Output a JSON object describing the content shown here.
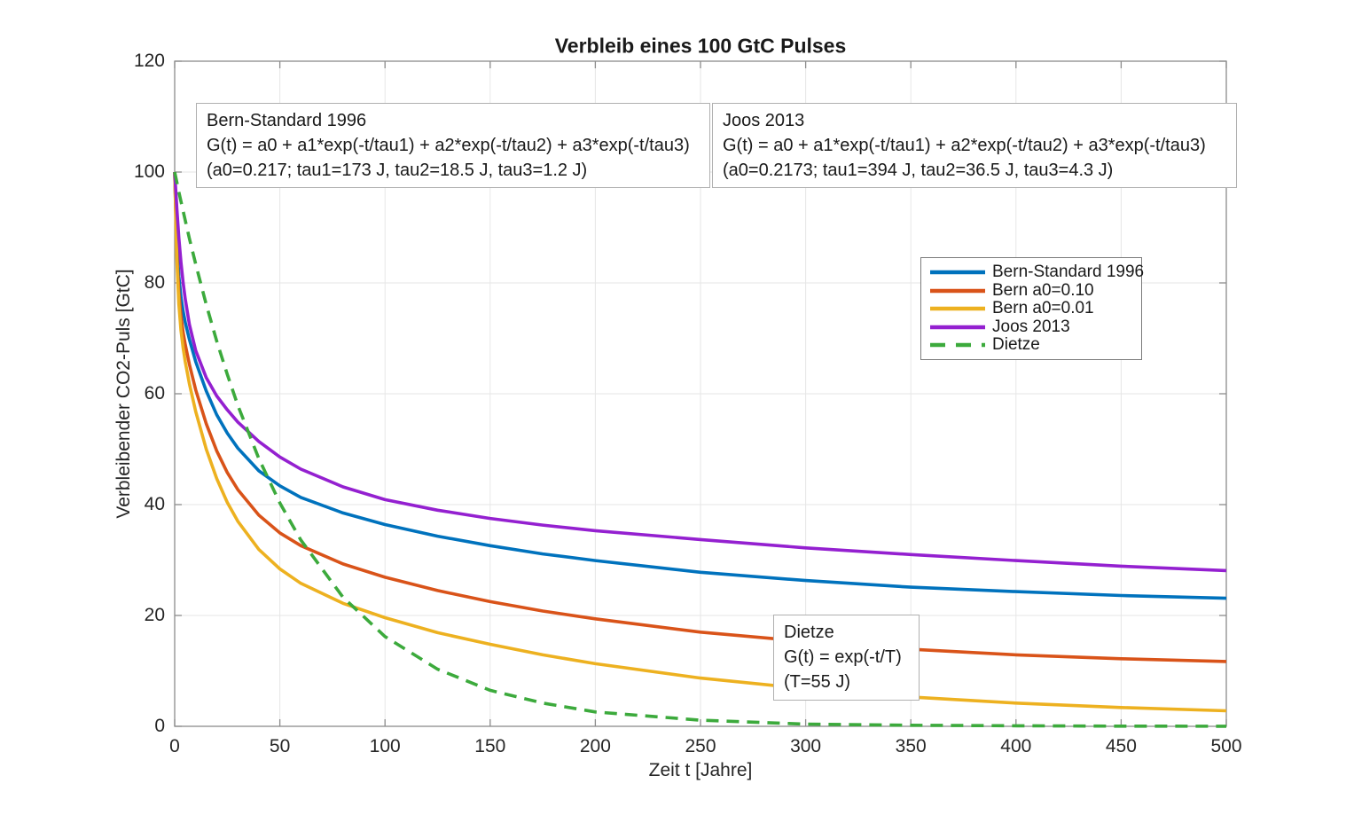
{
  "chart_data": {
    "type": "line",
    "title": "Verbleib eines 100 GtC Pulses",
    "xlabel": "Zeit t [Jahre]",
    "ylabel": "Verbleibender CO2-Puls [GtC]",
    "xlim": [
      0,
      500
    ],
    "ylim": [
      0,
      120
    ],
    "x_ticks": [
      0,
      50,
      100,
      150,
      200,
      250,
      300,
      350,
      400,
      450,
      500
    ],
    "y_ticks": [
      0,
      20,
      40,
      60,
      80,
      100,
      120
    ],
    "grid": true,
    "legend_position": "upper right",
    "x": [
      0,
      1,
      2,
      3,
      4,
      5,
      7,
      10,
      15,
      20,
      25,
      30,
      40,
      50,
      60,
      80,
      100,
      125,
      150,
      175,
      200,
      250,
      300,
      350,
      400,
      450,
      500
    ],
    "series": [
      {
        "name": "Bern-Standard 1996",
        "color": "#0072BD",
        "style": "solid",
        "values": [
          100,
          87.6,
          81.2,
          77.4,
          74.9,
          72.9,
          69.8,
          65.8,
          60.5,
          56.2,
          52.9,
          50.2,
          46.1,
          43.4,
          41.3,
          38.5,
          36.4,
          34.3,
          32.6,
          31.1,
          29.9,
          27.8,
          26.3,
          25.1,
          24.3,
          23.6,
          23.1
        ]
      },
      {
        "name": "Bern a0=0.10",
        "color": "#D95319",
        "style": "solid",
        "values": [
          100,
          85.7,
          78.3,
          74.0,
          71.1,
          68.9,
          65.3,
          60.7,
          54.6,
          49.7,
          45.8,
          42.7,
          38.1,
          34.9,
          32.6,
          29.3,
          26.9,
          24.5,
          22.5,
          20.8,
          19.4,
          17.0,
          15.3,
          13.9,
          12.9,
          12.2,
          11.7
        ]
      },
      {
        "name": "Bern a0=0.01",
        "color": "#EDB120",
        "style": "solid",
        "values": [
          100,
          84.3,
          76.2,
          71.4,
          68.3,
          65.8,
          61.8,
          56.8,
          50.0,
          44.7,
          40.4,
          37.0,
          31.9,
          28.4,
          25.8,
          22.2,
          19.6,
          16.9,
          14.8,
          12.9,
          11.3,
          8.7,
          6.8,
          5.3,
          4.2,
          3.4,
          2.8
        ]
      },
      {
        "name": "Joos 2013",
        "color": "#9420D0",
        "style": "solid",
        "values": [
          100,
          93.5,
          88.1,
          83.7,
          80.1,
          77.1,
          72.5,
          67.8,
          62.9,
          59.6,
          57.1,
          54.9,
          51.4,
          48.6,
          46.4,
          43.2,
          40.9,
          39.0,
          37.5,
          36.3,
          35.3,
          33.7,
          32.2,
          31.0,
          29.9,
          28.9,
          28.1
        ]
      },
      {
        "name": "Dietze",
        "color": "#3CAA3C",
        "style": "dashed",
        "values": [
          100,
          98.2,
          96.4,
          94.7,
          93.0,
          91.3,
          88.0,
          83.4,
          76.1,
          69.5,
          63.5,
          57.9,
          48.3,
          40.3,
          33.6,
          23.3,
          16.2,
          10.3,
          6.5,
          4.2,
          2.6,
          1.1,
          0.4,
          0.2,
          0.1,
          0.03,
          0.01
        ]
      }
    ]
  },
  "legend": {
    "entries": [
      {
        "label": "Bern-Standard 1996",
        "color": "#0072BD",
        "style": "solid"
      },
      {
        "label": "Bern a0=0.10",
        "color": "#D95319",
        "style": "solid"
      },
      {
        "label": "Bern a0=0.01",
        "color": "#EDB120",
        "style": "solid"
      },
      {
        "label": "Joos 2013",
        "color": "#9420D0",
        "style": "solid"
      },
      {
        "label": "Dietze",
        "color": "#3CAA3C",
        "style": "dashed"
      }
    ]
  },
  "annotations": [
    {
      "lines": [
        "Bern-Standard 1996",
        "G(t) = a0 + a1*exp(-t/tau1) + a2*exp(-t/tau2) + a3*exp(-t/tau3)",
        "(a0=0.217; tau1=173 J, tau2=18.5 J, tau3=1.2 J)"
      ]
    },
    {
      "lines": [
        "Joos 2013",
        "G(t) = a0 + a1*exp(-t/tau1) + a2*exp(-t/tau2) + a3*exp(-t/tau3)",
        "(a0=0.2173; tau1=394 J, tau2=36.5 J, tau3=4.3 J)"
      ]
    },
    {
      "lines": [
        "Dietze",
        "G(t) = exp(-t/T)",
        "(T=55 J)"
      ]
    }
  ],
  "colors": {
    "frame": "#8c8c8c",
    "grid": "#e6e6e6",
    "tick_text": "#262626"
  }
}
